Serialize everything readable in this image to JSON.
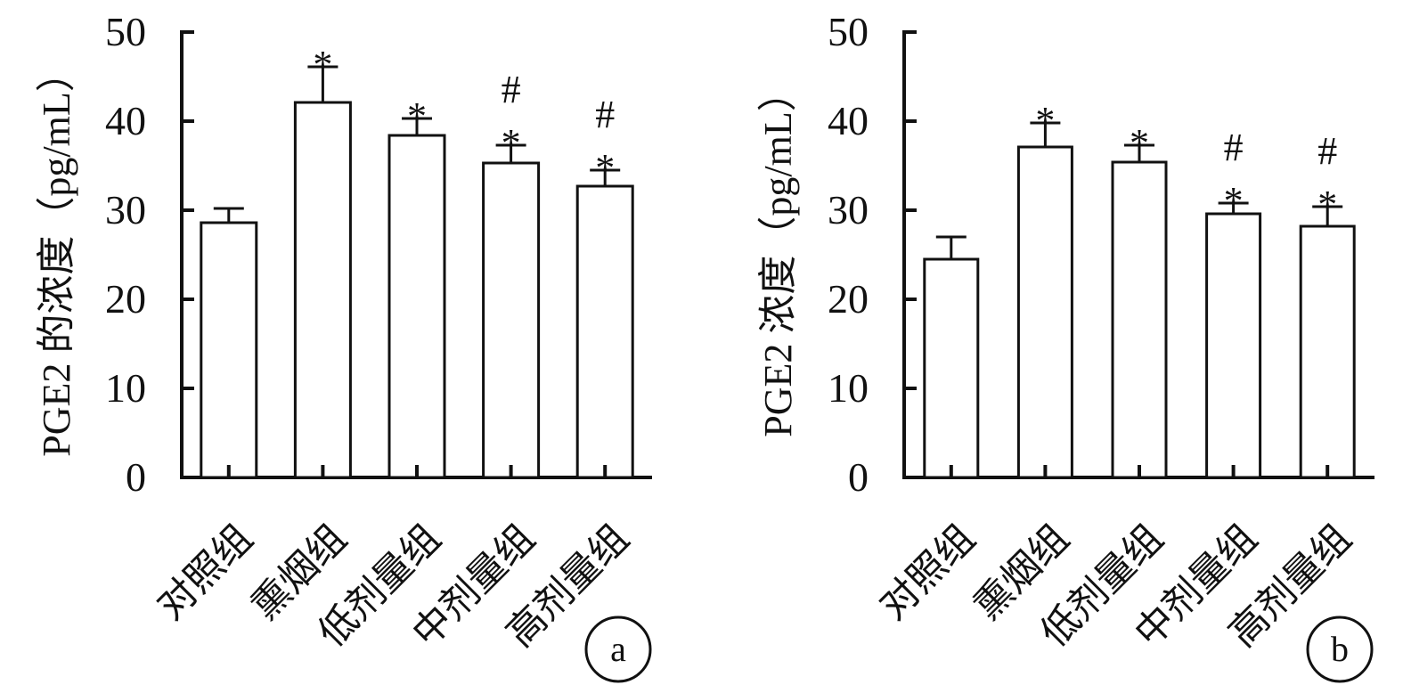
{
  "chart_data": [
    {
      "panel_label": "a",
      "type": "bar",
      "ylabel": "PGE2 的浓度（pg/mL）",
      "xlabel": "",
      "ylim": [
        0,
        50
      ],
      "yticks": [
        "0",
        "10",
        "20",
        "30",
        "40",
        "50"
      ],
      "categories": [
        "对照组",
        "熏烟组",
        "低剂量组",
        "中剂量组",
        "高剂量组"
      ],
      "series": [
        {
          "values": [
            28.6,
            42.1,
            38.4,
            35.3,
            32.7
          ],
          "error": [
            1.6,
            4.0,
            1.9,
            2.0,
            1.8
          ]
        }
      ],
      "annotations": [
        {
          "category": "熏烟组",
          "marks": [
            "*"
          ]
        },
        {
          "category": "低剂量组",
          "marks": [
            "*"
          ]
        },
        {
          "category": "中剂量组",
          "marks": [
            "*",
            "#"
          ]
        },
        {
          "category": "高剂量组",
          "marks": [
            "*",
            "#"
          ]
        }
      ],
      "fill_color": "#ffffff",
      "stroke_color": "#111111",
      "grid": false,
      "legend": "none"
    },
    {
      "panel_label": "b",
      "type": "bar",
      "ylabel": "PGE2 浓度（pg/mL）",
      "xlabel": "",
      "ylim": [
        0,
        50
      ],
      "yticks": [
        "0",
        "10",
        "20",
        "30",
        "40",
        "50"
      ],
      "categories": [
        "对照组",
        "熏烟组",
        "低剂量组",
        "中剂量组",
        "高剂量组"
      ],
      "series": [
        {
          "values": [
            24.5,
            37.1,
            35.4,
            29.6,
            28.2
          ],
          "error": [
            2.5,
            2.7,
            1.9,
            1.2,
            2.2
          ]
        }
      ],
      "annotations": [
        {
          "category": "熏烟组",
          "marks": [
            "*"
          ]
        },
        {
          "category": "低剂量组",
          "marks": [
            "*"
          ]
        },
        {
          "category": "中剂量组",
          "marks": [
            "*",
            "#"
          ]
        },
        {
          "category": "高剂量组",
          "marks": [
            "*",
            "#"
          ]
        }
      ],
      "fill_color": "#ffffff",
      "stroke_color": "#111111",
      "grid": false,
      "legend": "none"
    }
  ]
}
